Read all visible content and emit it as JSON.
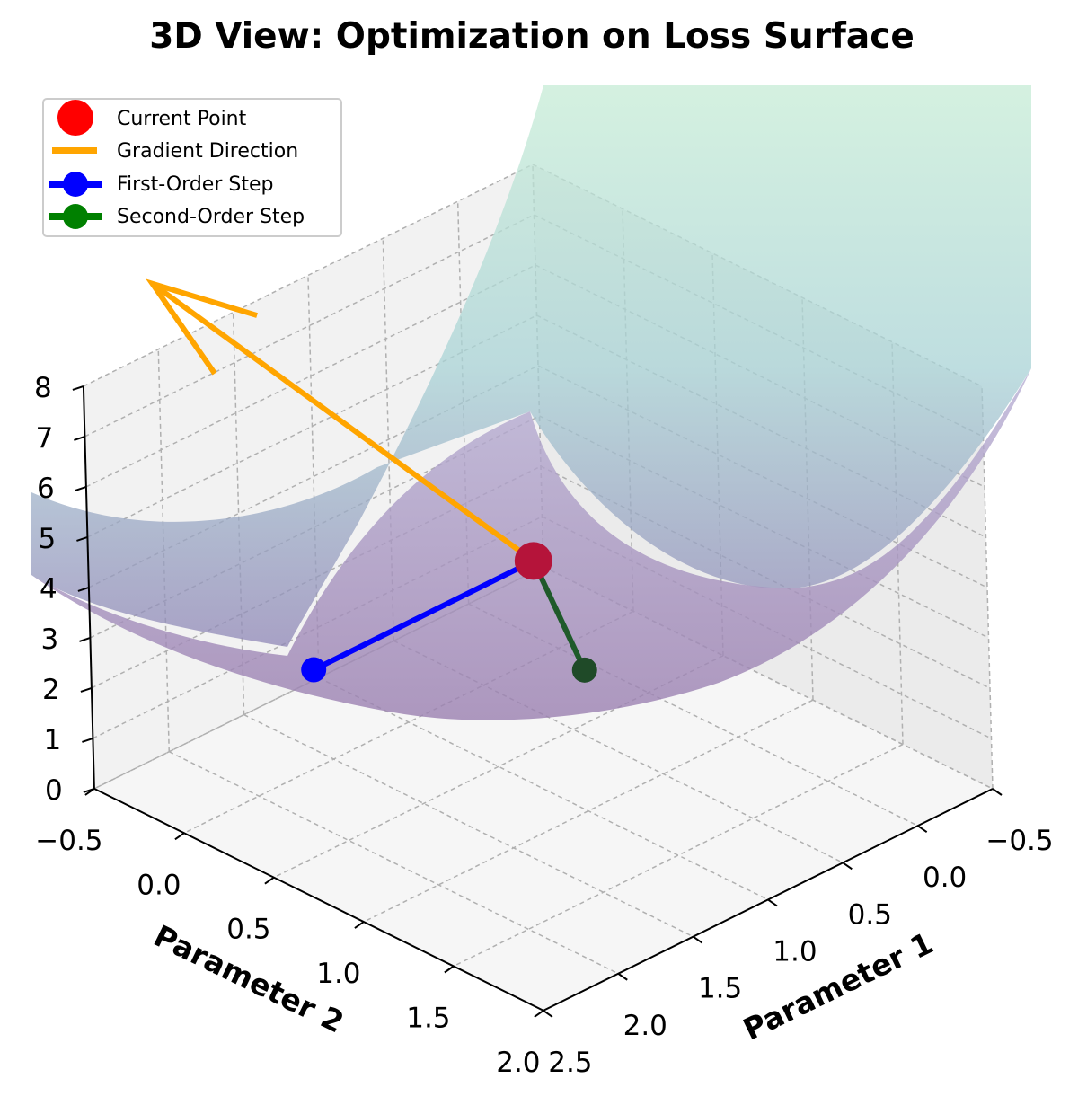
{
  "chart_data": {
    "type": "surface3d",
    "title": "3D View: Optimization on Loss Surface",
    "xlabel": "Parameter 1",
    "ylabel": "Parameter 2",
    "zlabel": "",
    "xlim": [
      -0.5,
      2.5
    ],
    "ylim": [
      -0.5,
      2.0
    ],
    "zlim": [
      0,
      8
    ],
    "xticks": [
      "−0.5",
      "0.0",
      "0.5",
      "1.0",
      "1.5",
      "2.0",
      "2.5"
    ],
    "yticks": [
      "−0.5",
      "0.0",
      "0.5",
      "1.0",
      "1.5",
      "2.0"
    ],
    "zticks": [
      "0",
      "1",
      "2",
      "3",
      "4",
      "5",
      "6",
      "7",
      "8"
    ],
    "grid": true,
    "legend_placement": "top-left",
    "surface_colormap": "viridis (translucent)",
    "current_point": {
      "x": 0.5,
      "y": 0.3,
      "z": 3.0
    },
    "gradient_tip": {
      "x": 0.1,
      "y": -2.15,
      "z": 3.6
    },
    "first_order_step": {
      "x": 1.5,
      "y": -0.1,
      "z": 1.6
    },
    "second_order_step": {
      "x": 1.0,
      "y": 1.0,
      "z": 2.8
    },
    "legend": [
      {
        "label": "Current Point",
        "color": "#ff0000",
        "kind": "marker"
      },
      {
        "label": "Gradient Direction",
        "color": "#ffa500",
        "kind": "line"
      },
      {
        "label": "First-Order Step",
        "color": "#0000ff",
        "kind": "line-marker"
      },
      {
        "label": "Second-Order Step",
        "color": "#008000",
        "kind": "line-marker"
      }
    ]
  }
}
